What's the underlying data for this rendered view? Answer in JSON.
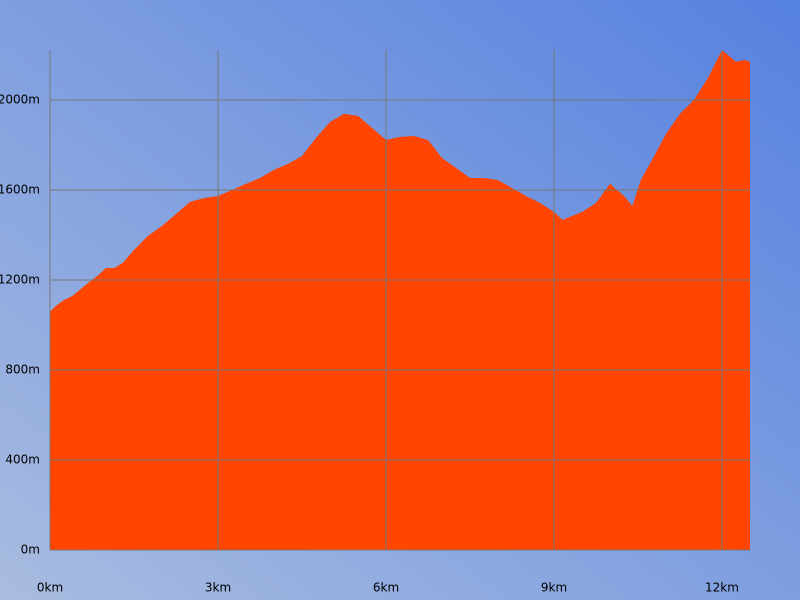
{
  "chart_data": {
    "type": "area",
    "x": [
      0,
      0.1,
      0.25,
      0.4,
      0.55,
      0.7,
      0.85,
      1.0,
      1.15,
      1.3,
      1.5,
      1.75,
      2.0,
      2.25,
      2.5,
      2.75,
      3.0,
      3.25,
      3.5,
      3.75,
      4.0,
      4.25,
      4.5,
      4.75,
      5.0,
      5.25,
      5.5,
      5.75,
      6.0,
      6.25,
      6.5,
      6.75,
      7.0,
      7.25,
      7.5,
      7.75,
      8.0,
      8.25,
      8.5,
      8.75,
      9.0,
      9.15,
      9.5,
      9.75,
      10.0,
      10.25,
      10.4,
      10.55,
      10.75,
      11.0,
      11.25,
      11.5,
      11.75,
      12.0,
      12.25,
      12.4,
      12.5
    ],
    "values": [
      1058,
      1084,
      1111,
      1129,
      1160,
      1191,
      1218,
      1253,
      1253,
      1276,
      1333,
      1396,
      1440,
      1493,
      1547,
      1564,
      1573,
      1600,
      1627,
      1653,
      1689,
      1716,
      1751,
      1831,
      1902,
      1938,
      1929,
      1876,
      1822,
      1836,
      1840,
      1822,
      1742,
      1698,
      1653,
      1653,
      1644,
      1609,
      1573,
      1542,
      1502,
      1467,
      1502,
      1542,
      1627,
      1573,
      1529,
      1644,
      1733,
      1849,
      1938,
      2000,
      2098,
      2222,
      2169,
      2178,
      2169
    ],
    "color": "#ff4500",
    "xlim": [
      0,
      12.5
    ],
    "ylim": [
      0,
      2222
    ],
    "xticks": [
      {
        "value": 0,
        "label": "0km"
      },
      {
        "value": 3,
        "label": "3km"
      },
      {
        "value": 6,
        "label": "6km"
      },
      {
        "value": 9,
        "label": "9km"
      },
      {
        "value": 12,
        "label": "12km"
      }
    ],
    "yticks": [
      {
        "value": 0,
        "label": "0m"
      },
      {
        "value": 400,
        "label": "400m"
      },
      {
        "value": 800,
        "label": "800m"
      },
      {
        "value": 1200,
        "label": "1200m"
      },
      {
        "value": 1600,
        "label": "1600m"
      },
      {
        "value": 2000,
        "label": "2000m"
      }
    ],
    "grid": true
  }
}
